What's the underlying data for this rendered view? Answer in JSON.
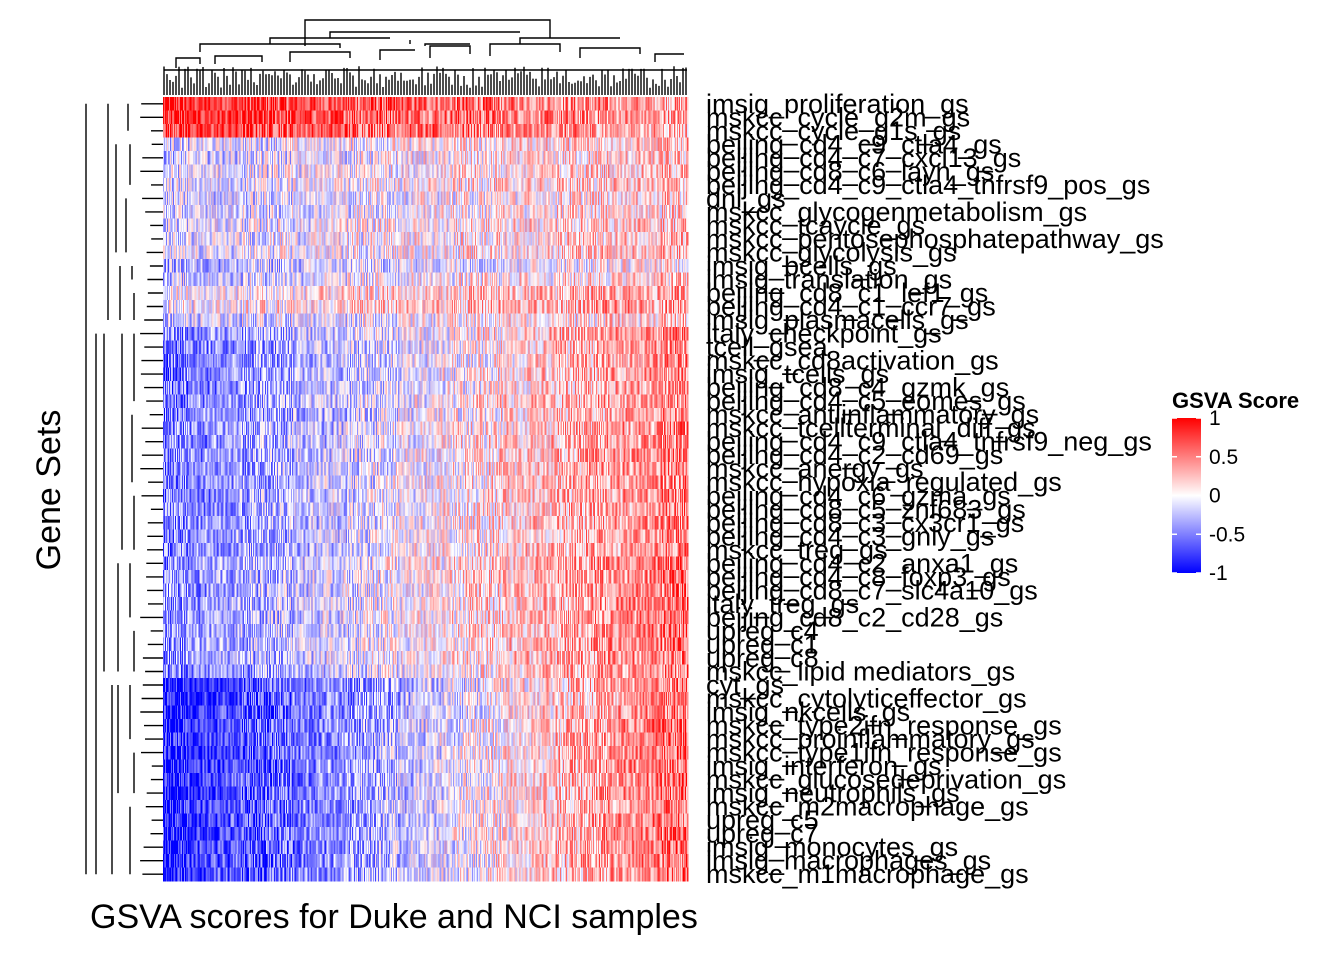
{
  "chart_data": {
    "type": "heatmap",
    "xlabel": "GSVA scores for Duke and NCI samples",
    "ylabel": "Gene Sets",
    "color_scale": {
      "min": -1,
      "max": 1,
      "low": "#0000ff",
      "mid": "#ffffff",
      "high": "#ff0000"
    },
    "legend": {
      "title": "GSVA Score",
      "placement": "right",
      "ticks": [
        {
          "value": 1,
          "label": "1"
        },
        {
          "value": 0.5,
          "label": "0.5"
        },
        {
          "value": 0,
          "label": "0"
        },
        {
          "value": -0.5,
          "label": "-0.5"
        },
        {
          "value": -1,
          "label": "-1"
        }
      ]
    },
    "sample_count_estimate": 520,
    "row_dendrogram": true,
    "column_dendrogram": true,
    "rows": [
      {
        "label": "imsig_proliferation_gs",
        "mean": 0.3
      },
      {
        "label": "mskcc_cycle_g2m_gs",
        "mean": 0.3
      },
      {
        "label": "mskcc_cycle_g1s_gs",
        "mean": 0.25
      },
      {
        "label": "beijing_cd4_c9_ctla4_gs",
        "mean": 0.05
      },
      {
        "label": "beijing_cd4_c7_cxcl13_gs",
        "mean": 0.0
      },
      {
        "label": "beijing_cd8_c6_layn_gs",
        "mean": 0.05
      },
      {
        "label": "beijing_cd4_c9_ctla4_tnfrsf9_pos_gs",
        "mean": 0.05
      },
      {
        "label": "dnl_gs",
        "mean": 0.0
      },
      {
        "label": "mskcc_glycogenmetabolism_gs",
        "mean": 0.0
      },
      {
        "label": "mskcc_tcaycle_gs",
        "mean": 0.05
      },
      {
        "label": "mskcc_pentosephosphatepathway_gs",
        "mean": 0.05
      },
      {
        "label": "mskcc_glycolysis_gs",
        "mean": 0.05
      },
      {
        "label": "imsig_bcells_gs",
        "mean": -0.1
      },
      {
        "label": "imsig_translation_gs",
        "mean": 0.0
      },
      {
        "label": "beijing_cd8_c1_lef1_gs",
        "mean": 0.15
      },
      {
        "label": "beijing_cd4_c1_ccr7_gs",
        "mean": 0.2
      },
      {
        "label": "imsig_plasmacells_gs",
        "mean": 0.0
      },
      {
        "label": "italy_checkpoint_gs",
        "mean": 0.0
      },
      {
        "label": "tcell_gsea",
        "mean": -0.05
      },
      {
        "label": "mskcc_cd8activation_gs",
        "mean": -0.05
      },
      {
        "label": "imsig_tcells_gs",
        "mean": -0.05
      },
      {
        "label": "beijing_cd8_c4_gzmk_gs",
        "mean": -0.05
      },
      {
        "label": "beijing_cd4_c5_eomes_gs",
        "mean": 0.0
      },
      {
        "label": "mskcc_antiinflammatory_gs",
        "mean": -0.05
      },
      {
        "label": "mskcc_tcellterminal_diff_gs",
        "mean": 0.0
      },
      {
        "label": "beijing_cd4_c9_ctla4_tnfrsf9_neg_gs",
        "mean": 0.0
      },
      {
        "label": "beijing_cd4_c2_cd69_gs",
        "mean": 0.0
      },
      {
        "label": "mskcc_anergy_gs",
        "mean": 0.0
      },
      {
        "label": "mskcc_hypoxia_regulated_gs",
        "mean": 0.0
      },
      {
        "label": "beijing_cd4_c6_gzma_gs",
        "mean": 0.0
      },
      {
        "label": "beijing_cd8_c5_znf683_gs",
        "mean": 0.0
      },
      {
        "label": "beijing_cd8_c3_cx3cr1_gs",
        "mean": 0.0
      },
      {
        "label": "beijing_cd4_c3_gnly_gs",
        "mean": 0.0
      },
      {
        "label": "mskcc_treg_gs",
        "mean": 0.0
      },
      {
        "label": "beijing_cd4_c2_anxa1_gs",
        "mean": 0.05
      },
      {
        "label": "beijing_cd4_c8_foxp3_gs",
        "mean": 0.05
      },
      {
        "label": "beijing_cd8_c7_slc4a10_gs",
        "mean": 0.05
      },
      {
        "label": "italy_treg_gs",
        "mean": 0.05
      },
      {
        "label": "beijing_cd8_c2_cd28_gs",
        "mean": 0.05
      },
      {
        "label": "upreg_c4",
        "mean": 0.05
      },
      {
        "label": "upreg_c1",
        "mean": 0.05
      },
      {
        "label": "upreg_c8",
        "mean": 0.05
      },
      {
        "label": "mskcc_lipid mediators_gs",
        "mean": 0.0
      },
      {
        "label": "cyt_gs",
        "mean": -0.1
      },
      {
        "label": "mskcc_cytolyticeffector_gs",
        "mean": -0.1
      },
      {
        "label": "imsig_nkcells_gs",
        "mean": -0.1
      },
      {
        "label": "mskcc_type2ifn_response_gs",
        "mean": -0.05
      },
      {
        "label": "mskcc_proinflammatory_gs",
        "mean": -0.05
      },
      {
        "label": "mskcc_type1ifn_response_gs",
        "mean": -0.05
      },
      {
        "label": "imsig_interferon_gs",
        "mean": -0.05
      },
      {
        "label": "mskcc_glucosedeprivation_gs",
        "mean": -0.05
      },
      {
        "label": "imsig_neutrophils_gs",
        "mean": -0.05
      },
      {
        "label": "mskcc_m2macrophage_gs",
        "mean": -0.05
      },
      {
        "label": "upreg_c5",
        "mean": -0.05
      },
      {
        "label": "upreg_c7",
        "mean": -0.05
      },
      {
        "label": "imsig_monocytes_gs",
        "mean": -0.05
      },
      {
        "label": "imsig_macrophages_gs",
        "mean": -0.05
      },
      {
        "label": "mskcc_m1macrophage_gs",
        "mean": -0.05
      }
    ]
  }
}
